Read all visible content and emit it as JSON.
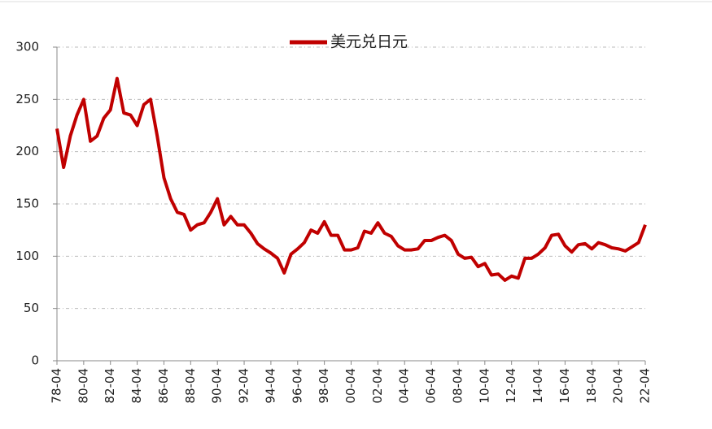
{
  "chart_data": {
    "type": "line",
    "categories": [
      "78-04",
      null,
      null,
      null,
      "80-04",
      null,
      null,
      null,
      "82-04",
      null,
      null,
      null,
      "84-04",
      null,
      null,
      null,
      "86-04",
      null,
      null,
      null,
      "88-04",
      null,
      null,
      null,
      "90-04",
      null,
      null,
      null,
      "92-04",
      null,
      null,
      null,
      "94-04",
      null,
      null,
      null,
      "96-04",
      null,
      null,
      null,
      "98-04",
      null,
      null,
      null,
      "00-04",
      null,
      null,
      null,
      "02-04",
      null,
      null,
      null,
      "04-04",
      null,
      null,
      null,
      "06-04",
      null,
      null,
      null,
      "08-04",
      null,
      null,
      null,
      "10-04",
      null,
      null,
      null,
      "12-04",
      null,
      null,
      null,
      "14-04",
      null,
      null,
      null,
      "16-04",
      null,
      null,
      null,
      "18-04",
      null,
      null,
      null,
      "20-04",
      null,
      null,
      null,
      "22-04"
    ],
    "series": [
      {
        "name": "美元兑日元",
        "color": "#c00000",
        "values": [
          222,
          185,
          215,
          235,
          250,
          210,
          215,
          232,
          240,
          270,
          237,
          235,
          225,
          245,
          250,
          215,
          175,
          155,
          142,
          140,
          125,
          130,
          132,
          142,
          155,
          130,
          138,
          130,
          130,
          122,
          112,
          107,
          103,
          98,
          84,
          102,
          107,
          113,
          125,
          122,
          133,
          120,
          120,
          106,
          106,
          108,
          124,
          122,
          132,
          122,
          119,
          110,
          106,
          106,
          107,
          115,
          115,
          118,
          120,
          115,
          102,
          98,
          99,
          90,
          93,
          82,
          83,
          77,
          81,
          79,
          98,
          98,
          102,
          108,
          120,
          121,
          110,
          104,
          111,
          112,
          107,
          113,
          111,
          108,
          107,
          105,
          109,
          113,
          130
        ]
      }
    ],
    "ylim": [
      0,
      300
    ],
    "yticks": [
      0,
      50,
      100,
      150,
      200,
      250,
      300
    ],
    "grid": true,
    "legend": "top"
  }
}
